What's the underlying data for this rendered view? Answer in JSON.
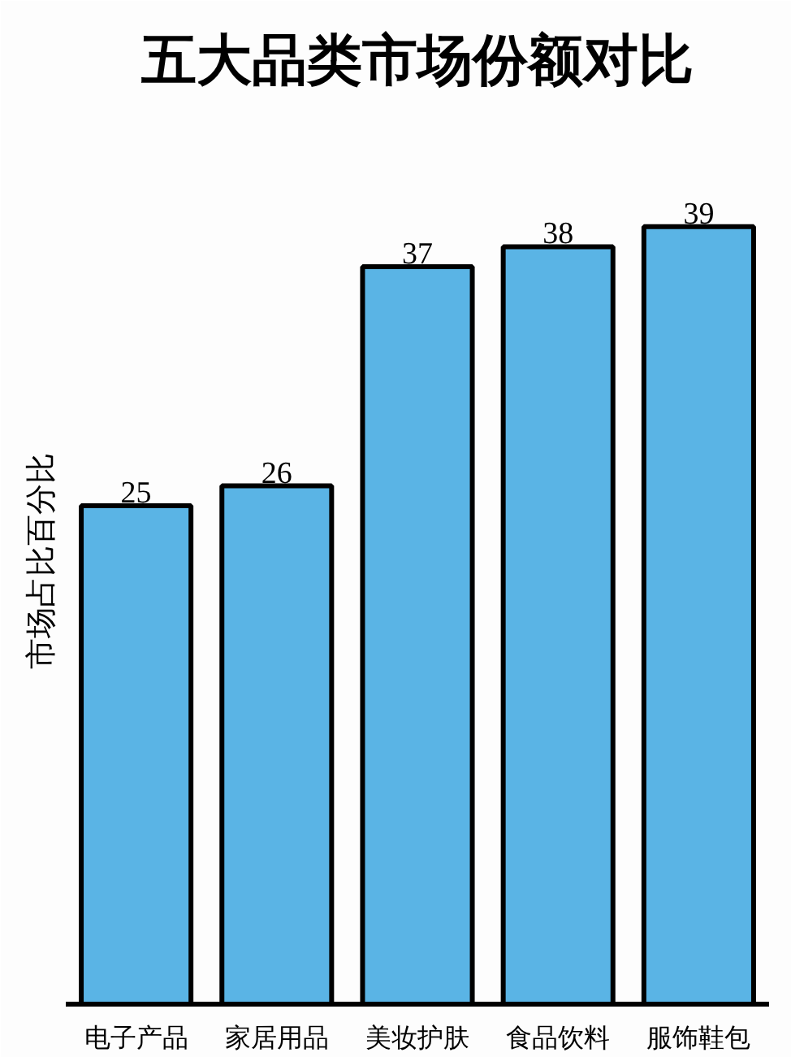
{
  "chart_data": {
    "type": "bar",
    "title": "五大品类市场份额对比",
    "ylabel": "市场占比百分比",
    "categories": [
      "电子产品",
      "家居用品",
      "美妆护肤",
      "食品饮料",
      "服饰鞋包"
    ],
    "values": [
      25,
      26,
      37,
      38,
      39
    ],
    "color": "#5ab4e5",
    "data_labels": true,
    "grid": false
  }
}
